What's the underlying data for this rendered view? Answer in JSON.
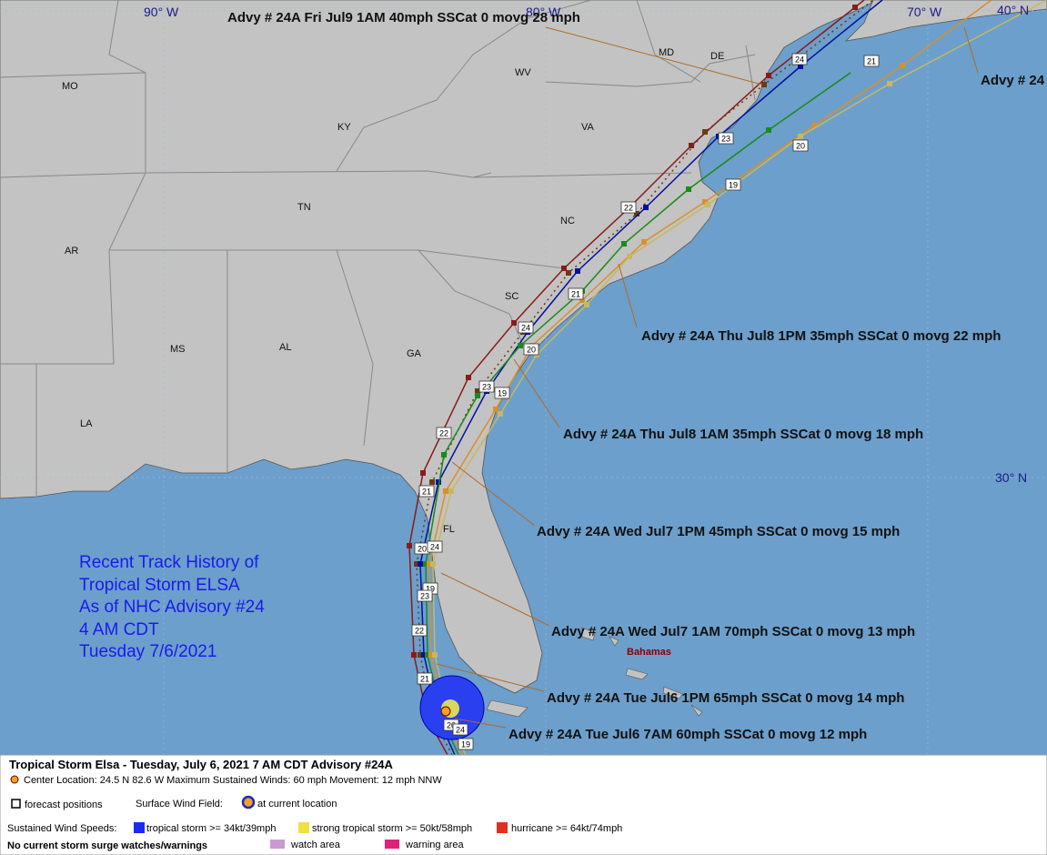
{
  "map": {
    "lat_lon_labels": [
      "90° W",
      "80° W",
      "70° W",
      "40° N",
      "30° N"
    ],
    "state_labels": [
      "MO",
      "KY",
      "WV",
      "VA",
      "MD",
      "DE",
      "TN",
      "NC",
      "AR",
      "SC",
      "MS",
      "AL",
      "GA",
      "LA",
      "FL"
    ],
    "places": [
      "Bahamas"
    ]
  },
  "advisories": [
    "Advy # 24A Fri Jul9 1AM  40mph SSCat 0 movg 28 mph",
    "Advy # 24",
    "Advy # 24A Thu Jul8 1PM  35mph SSCat 0 movg 22 mph",
    "Advy # 24A Thu Jul8 1AM  35mph SSCat 0 movg 18 mph",
    "Advy # 24A Wed Jul7 1PM  45mph SSCat 0 movg 15 mph",
    "Advy # 24A Wed Jul7 1AM  70mph SSCat 0 movg 13 mph",
    "Advy # 24A Tue Jul6 1PM  65mph SSCat 0 movg 14 mph",
    "Advy # 24A Tue Jul6 7AM  60mph SSCat 0 movg 12 mph"
  ],
  "history_note": [
    "Recent Track History of",
    "Tropical Storm ELSA",
    "As of NHC Advisory #24",
    "4 AM CDT",
    "Tuesday 7/6/2021"
  ],
  "track_labels": [
    "24",
    "21",
    "23",
    "20",
    "19",
    "22",
    "21",
    "24",
    "20",
    "23",
    "19",
    "22",
    "21",
    "20",
    "24",
    "19",
    "23",
    "22",
    "21",
    "20",
    "24",
    "19"
  ],
  "panel": {
    "title": "Tropical Storm Elsa  -  Tuesday, July 6, 2021  7 AM CDT   Advisory #24A",
    "center": "Center Location: 24.5 N  82.6 W  Maximum Sustained Winds: 60 mph  Movement: 12 mph NNW",
    "forecast_positions": "forecast positions",
    "wind_field": "Surface Wind Field:",
    "current_location": "at current location",
    "sustained": "Sustained Wind Speeds:",
    "tropical_storm": "tropical storm >= 34kt/39mph",
    "strong_tropical_storm": "strong tropical storm >= 50kt/58mph",
    "hurricane": "hurricane >= 64kt/74mph",
    "surge": "No current storm surge watches/warnings",
    "watch": "watch area",
    "warning": "warning area"
  }
}
